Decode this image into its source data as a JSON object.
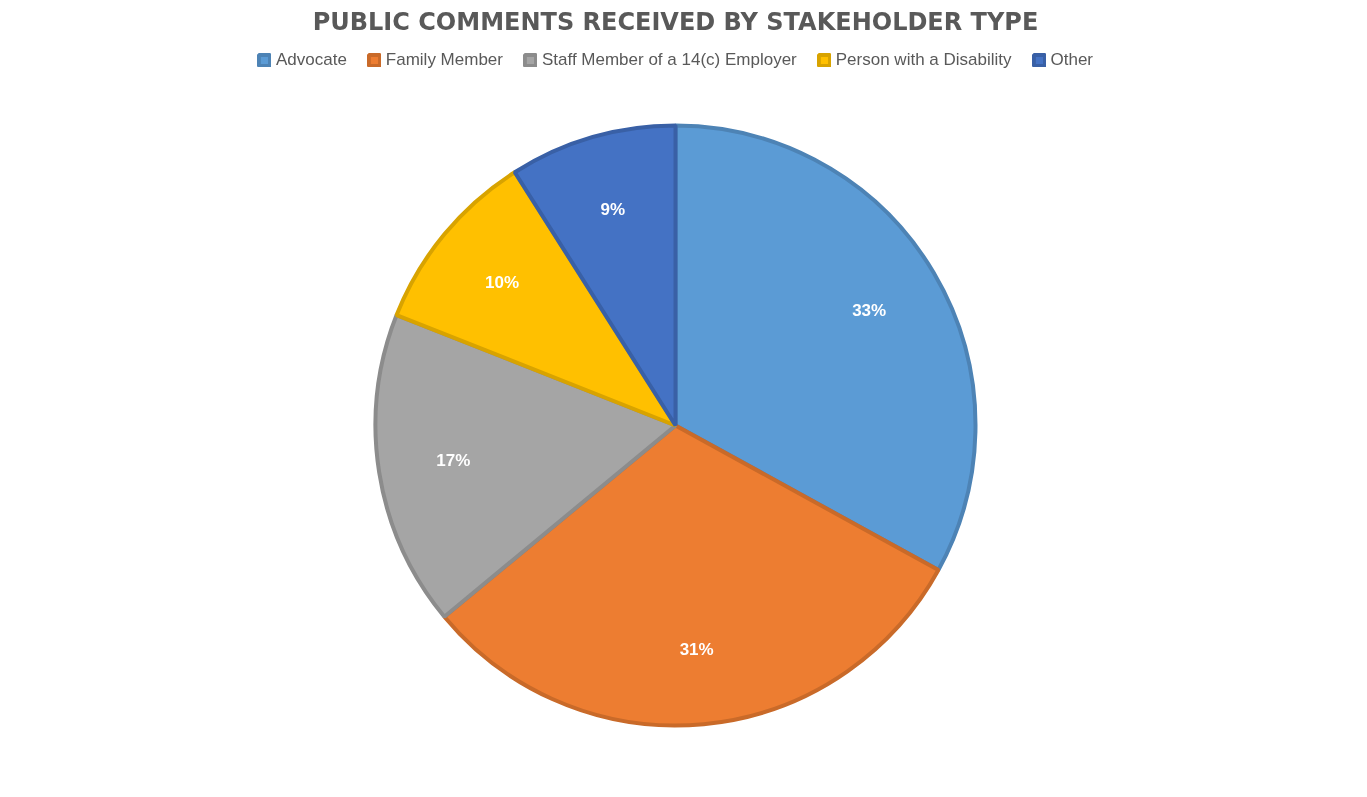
{
  "chart_data": {
    "type": "pie",
    "title": "PUBLIC COMMENTS RECEIVED BY STAKEHOLDER TYPE",
    "categories": [
      "Advocate",
      "Family Member",
      "Staff Member of a 14(c) Employer",
      "Person with a Disability",
      "Other"
    ],
    "values": [
      33,
      31,
      17,
      10,
      9
    ],
    "colors": [
      "#5b9bd5",
      "#ed7d31",
      "#a5a5a5",
      "#ffc000",
      "#4472c4"
    ],
    "value_labels": [
      "33%",
      "31%",
      "17%",
      "10%",
      "9%"
    ],
    "legend": "top"
  }
}
